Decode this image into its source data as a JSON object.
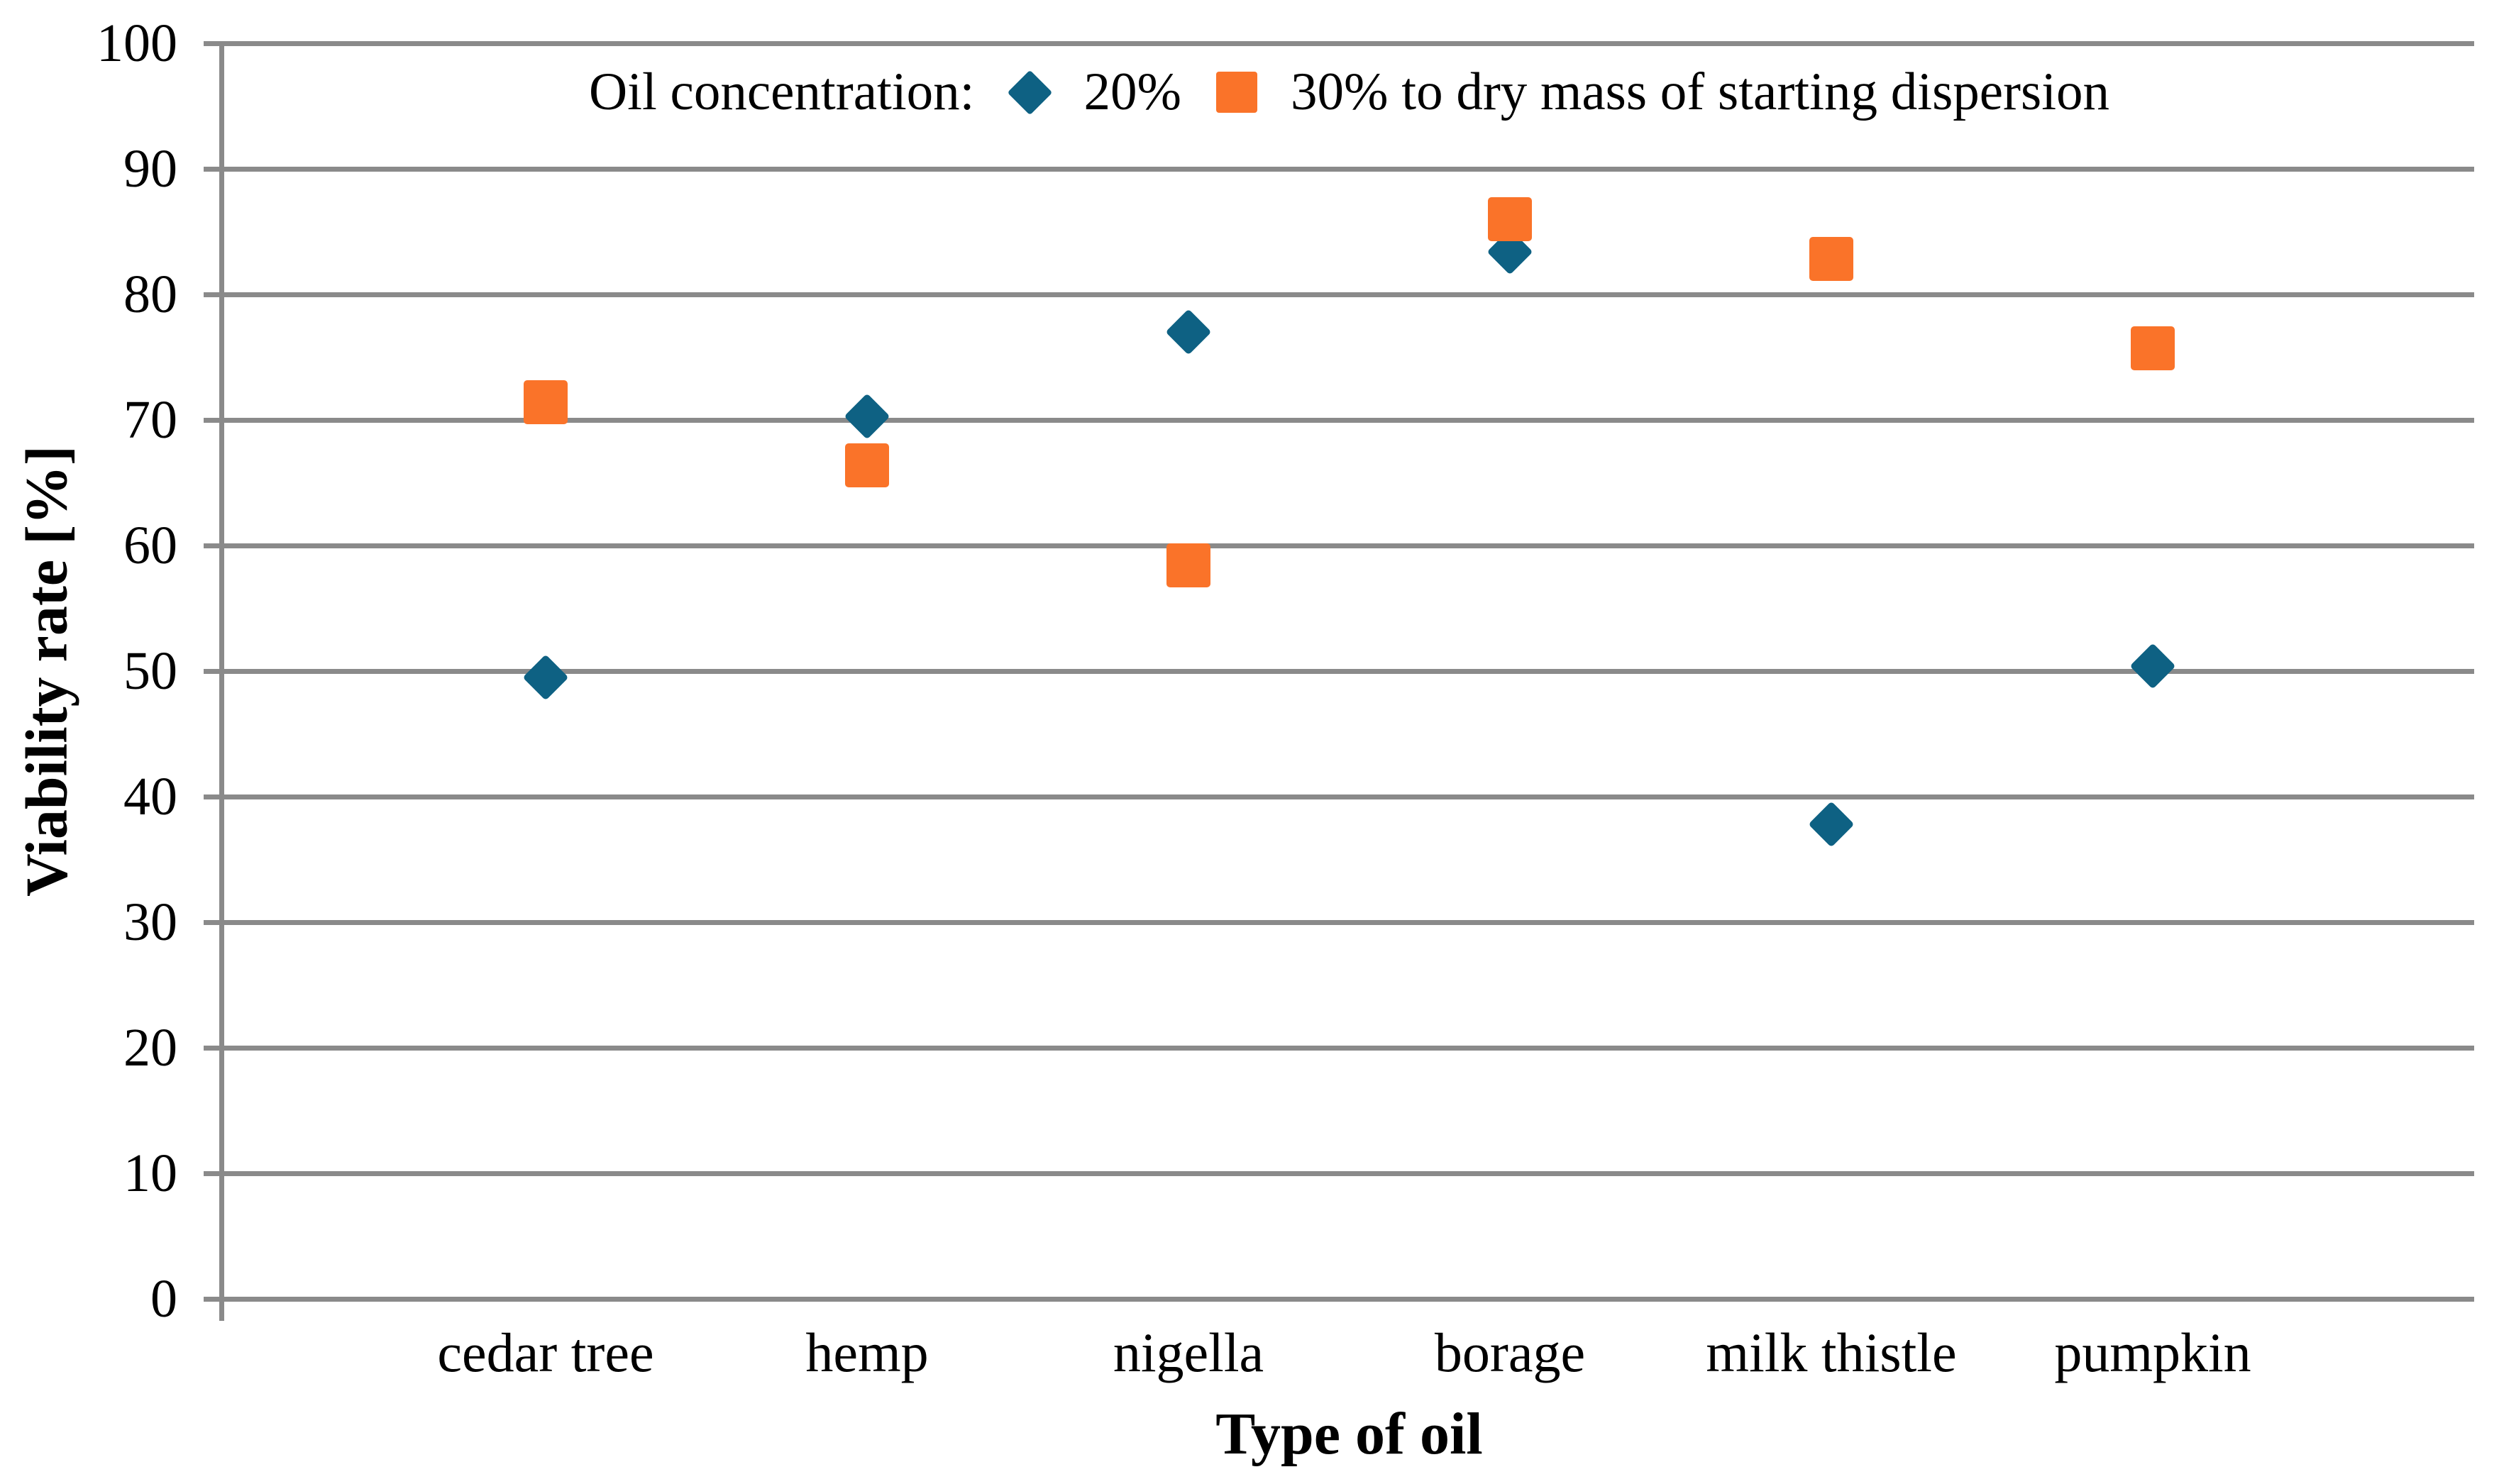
{
  "chart_data": {
    "type": "scatter",
    "legend_title": "Oil concentration:",
    "categories": [
      "cedar tree",
      "hemp",
      "nigella",
      "borage",
      "milk thistle",
      "pumpkin"
    ],
    "series": [
      {
        "name": "20%",
        "marker": "diamond",
        "color": "#0E6183",
        "values": [
          49.5,
          70.3,
          77.0,
          83.4,
          37.8,
          50.4
        ]
      },
      {
        "name": "30% to dry mass of starting dispersion",
        "marker": "square",
        "color": "#FA7329",
        "values": [
          71.4,
          66.4,
          58.4,
          86.0,
          82.8,
          75.7
        ]
      }
    ],
    "xlabel": "Type of oil",
    "ylabel": "Viability rate [%]",
    "ylim": [
      0,
      100
    ],
    "ystep": 10,
    "x_domain": [
      0,
      7
    ],
    "grid": true,
    "legend_position": "top-center",
    "grid_color": "#8A8A8A",
    "text_color": "#000000",
    "background_color": "#FFFFFF"
  }
}
